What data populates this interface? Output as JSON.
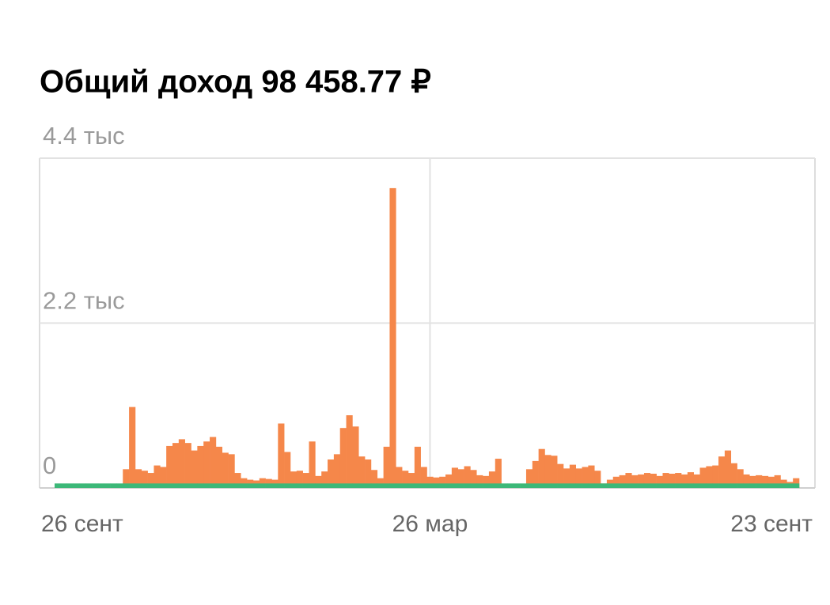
{
  "chart_data": {
    "type": "bar",
    "title": "Общий доход 98 458.77 ₽",
    "categories": [
      "26 сент",
      null,
      null,
      null,
      null,
      null,
      null,
      null,
      null,
      null,
      null,
      null,
      null,
      null,
      null,
      null,
      null,
      null,
      null,
      null,
      null,
      null,
      null,
      null,
      null,
      null,
      null,
      null,
      null,
      null,
      null,
      null,
      null,
      null,
      null,
      null,
      null,
      null,
      null,
      null,
      null,
      null,
      null,
      null,
      null,
      null,
      null,
      null,
      null,
      null,
      null,
      null,
      null,
      null,
      null,
      null,
      null,
      null,
      null,
      null,
      "26 мар",
      null,
      null,
      null,
      null,
      null,
      null,
      null,
      null,
      null,
      null,
      null,
      null,
      null,
      null,
      null,
      null,
      null,
      null,
      null,
      null,
      null,
      null,
      null,
      null,
      null,
      null,
      null,
      null,
      null,
      null,
      null,
      null,
      null,
      null,
      null,
      null,
      null,
      null,
      null,
      null,
      null,
      null,
      null,
      null,
      null,
      null,
      null,
      null,
      null,
      null,
      null,
      null,
      null,
      null,
      null,
      null,
      null,
      null,
      "23 сент"
    ],
    "series": [
      {
        "color": "#f5874a",
        "values": [
          0,
          0,
          0,
          0,
          0,
          0,
          0,
          0,
          0,
          0,
          0,
          250,
          1080,
          250,
          230,
          200,
          300,
          280,
          560,
          600,
          650,
          600,
          500,
          560,
          620,
          680,
          550,
          470,
          450,
          200,
          130,
          110,
          100,
          130,
          120,
          110,
          860,
          480,
          220,
          230,
          200,
          620,
          160,
          220,
          380,
          450,
          800,
          970,
          820,
          420,
          380,
          240,
          130,
          550,
          4000,
          280,
          230,
          200,
          550,
          280,
          150,
          140,
          150,
          180,
          270,
          250,
          290,
          240,
          170,
          160,
          220,
          390,
          0,
          0,
          0,
          0,
          250,
          360,
          520,
          440,
          430,
          320,
          260,
          310,
          260,
          280,
          300,
          230,
          60,
          110,
          150,
          170,
          200,
          170,
          180,
          200,
          190,
          160,
          200,
          190,
          200,
          180,
          210,
          180,
          270,
          290,
          300,
          420,
          500,
          330,
          250,
          180,
          160,
          170,
          160,
          150,
          170,
          110,
          80,
          130
        ]
      },
      {
        "color": "#3cb878",
        "values": [
          60,
          60,
          60,
          60,
          60,
          60,
          60,
          60,
          60,
          60,
          60,
          60,
          60,
          60,
          60,
          60,
          60,
          60,
          60,
          60,
          60,
          60,
          60,
          60,
          60,
          60,
          60,
          60,
          60,
          60,
          60,
          60,
          60,
          60,
          60,
          60,
          60,
          60,
          60,
          60,
          60,
          60,
          60,
          60,
          60,
          60,
          60,
          60,
          60,
          60,
          60,
          60,
          60,
          60,
          60,
          60,
          60,
          60,
          60,
          60,
          60,
          60,
          60,
          60,
          60,
          60,
          60,
          60,
          60,
          60,
          60,
          60,
          60,
          60,
          60,
          60,
          60,
          60,
          60,
          60,
          60,
          60,
          60,
          60,
          60,
          60,
          60,
          60,
          60,
          60,
          60,
          60,
          60,
          60,
          60,
          60,
          60,
          60,
          60,
          60,
          60,
          60,
          60,
          60,
          60,
          60,
          60,
          60,
          60,
          60,
          60,
          60,
          60,
          60,
          60,
          60,
          60,
          60,
          60,
          60
        ]
      }
    ],
    "ylim": [
      0,
      4400
    ],
    "yticks": [
      0,
      {
        "value": 2200,
        "label": "2.2 тыс"
      },
      {
        "value": 4400,
        "label": "4.4 тыс"
      }
    ],
    "grid": true
  }
}
